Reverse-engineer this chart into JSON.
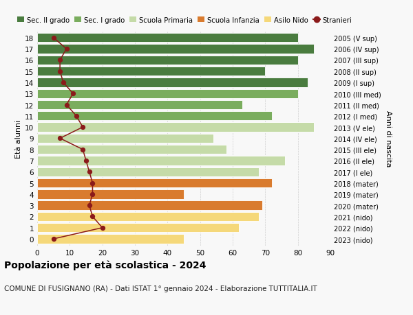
{
  "ages": [
    18,
    17,
    16,
    15,
    14,
    13,
    12,
    11,
    10,
    9,
    8,
    7,
    6,
    5,
    4,
    3,
    2,
    1,
    0
  ],
  "right_labels": [
    "2005 (V sup)",
    "2006 (IV sup)",
    "2007 (III sup)",
    "2008 (II sup)",
    "2009 (I sup)",
    "2010 (III med)",
    "2011 (II med)",
    "2012 (I med)",
    "2013 (V ele)",
    "2014 (IV ele)",
    "2015 (III ele)",
    "2016 (II ele)",
    "2017 (I ele)",
    "2018 (mater)",
    "2019 (mater)",
    "2020 (mater)",
    "2021 (nido)",
    "2022 (nido)",
    "2023 (nido)"
  ],
  "bar_values": [
    80,
    85,
    80,
    70,
    83,
    80,
    63,
    72,
    85,
    54,
    58,
    76,
    68,
    72,
    45,
    69,
    68,
    62,
    45
  ],
  "bar_colors": [
    "#4a7c3f",
    "#4a7c3f",
    "#4a7c3f",
    "#4a7c3f",
    "#4a7c3f",
    "#7aad5e",
    "#7aad5e",
    "#7aad5e",
    "#c5dba8",
    "#c5dba8",
    "#c5dba8",
    "#c5dba8",
    "#c5dba8",
    "#d97b2e",
    "#d97b2e",
    "#d97b2e",
    "#f5d87a",
    "#f5d87a",
    "#f5d87a"
  ],
  "stranieri": [
    5,
    9,
    7,
    7,
    8,
    11,
    9,
    12,
    14,
    7,
    14,
    15,
    16,
    17,
    17,
    16,
    17,
    20,
    5
  ],
  "legend_labels": [
    "Sec. II grado",
    "Sec. I grado",
    "Scuola Primaria",
    "Scuola Infanzia",
    "Asilo Nido",
    "Stranieri"
  ],
  "legend_colors": [
    "#4a7c3f",
    "#7aad5e",
    "#c5dba8",
    "#d97b2e",
    "#f5d87a",
    "#8b1a1a"
  ],
  "title": "Popolazione per età scolastica - 2024",
  "subtitle": "COMUNE DI FUSIGNANO (RA) - Dati ISTAT 1° gennaio 2024 - Elaborazione TUTTITALIA.IT",
  "ylabel": "Età alunni",
  "ylabel_right": "Anni di nascita",
  "xlim": [
    0,
    90
  ],
  "xticks": [
    0,
    10,
    20,
    30,
    40,
    50,
    60,
    70,
    80,
    90
  ],
  "bg_color": "#f8f8f8",
  "grid_color": "#cccccc"
}
